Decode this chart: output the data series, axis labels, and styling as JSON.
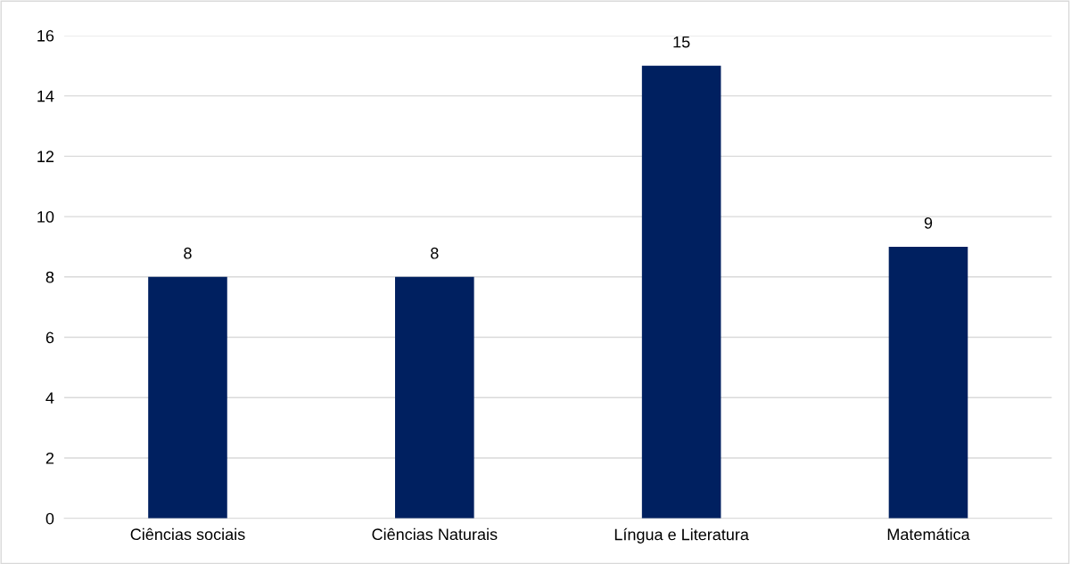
{
  "chart_data": {
    "type": "bar",
    "categories": [
      "Ciências sociais",
      "Ciências Naturais",
      "Língua e Literatura",
      "Matemática"
    ],
    "values": [
      8,
      8,
      15,
      9
    ],
    "color": "#002060",
    "ylim": [
      0,
      16
    ],
    "yticks": [
      0,
      2,
      4,
      6,
      8,
      10,
      12,
      14,
      16
    ],
    "grid": "y",
    "data_labels": true
  }
}
